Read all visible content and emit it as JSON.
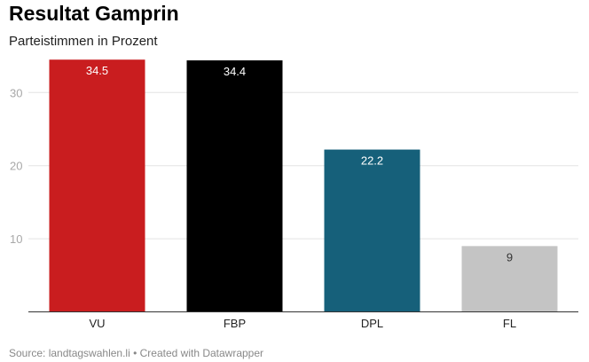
{
  "header": {
    "title": "Resultat Gamprin",
    "subtitle": "Parteistimmen in Prozent"
  },
  "footer": {
    "source": "Source: landtagswahlen.li • Created with Datawrapper"
  },
  "chart_data": {
    "type": "bar",
    "categories": [
      "VU",
      "FBP",
      "DPL",
      "FL"
    ],
    "values": [
      34.5,
      34.4,
      22.2,
      9
    ],
    "value_labels": [
      "34.5",
      "34.4",
      "22.2",
      "9"
    ],
    "colors": [
      "#c91d1f",
      "#000000",
      "#16607a",
      "#c4c4c4"
    ],
    "label_colors": [
      "#ffffff",
      "#ffffff",
      "#ffffff",
      "#333333"
    ],
    "ylim": [
      0,
      35
    ],
    "yticks": [
      10,
      20,
      30
    ],
    "grid": true,
    "legend": "none"
  }
}
